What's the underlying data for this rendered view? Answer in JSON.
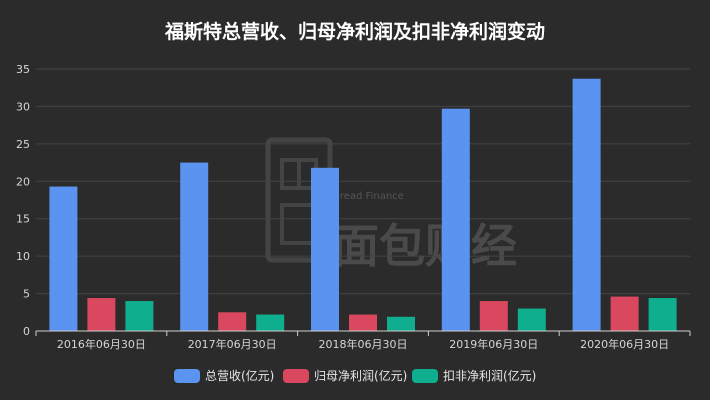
{
  "chart_data": {
    "type": "bar",
    "title": "福斯特总营收、归母净利润及扣非净利润变动",
    "xlabel": "",
    "ylabel": "",
    "categories": [
      "2016年06月30日",
      "2017年06月30日",
      "2018年06月30日",
      "2019年06月30日",
      "2020年06月30日"
    ],
    "ylim": [
      0,
      35
    ],
    "yticks": [
      0,
      5,
      10,
      15,
      20,
      25,
      30,
      35
    ],
    "grid": true,
    "legend_position": "bottom-center",
    "series": [
      {
        "name": "总营收(亿元)",
        "color": "#5a93f0",
        "values": [
          19.3,
          22.5,
          21.8,
          29.7,
          33.7
        ]
      },
      {
        "name": "归母净利润(亿元)",
        "color": "#d9485e",
        "values": [
          4.4,
          2.5,
          2.2,
          4.0,
          4.6
        ]
      },
      {
        "name": "扣非净利润(亿元)",
        "color": "#0fae8e",
        "values": [
          4.0,
          2.2,
          1.9,
          3.0,
          4.4
        ]
      }
    ]
  },
  "watermark": {
    "brand_text": "Bread Finance",
    "logo_text": "面包财经"
  }
}
